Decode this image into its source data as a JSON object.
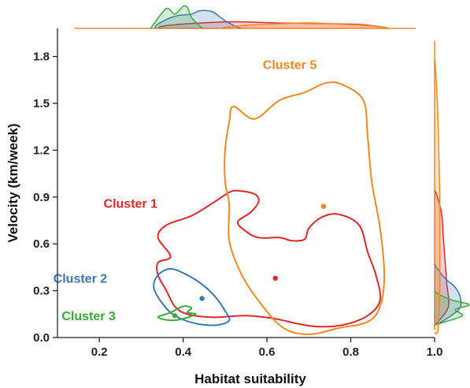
{
  "chart_data": {
    "type": "kde-contour-scatter",
    "xlabel": "Habitat suitability",
    "ylabel": "Velocity (km/week)",
    "xlim": [
      0.1,
      1.0
    ],
    "ylim": [
      0.0,
      1.98
    ],
    "x_ticks": [
      0.2,
      0.4,
      0.6,
      0.8,
      1.0
    ],
    "x_tick_labels": [
      "0.2",
      "0.4",
      "0.6",
      "0.8",
      "1.0"
    ],
    "y_ticks": [
      0.0,
      0.3,
      0.6,
      0.9,
      1.2,
      1.5,
      1.8
    ],
    "y_tick_labels": [
      "0.0",
      "0.3",
      "0.6",
      "0.9",
      "1.2",
      "1.5",
      "1.8"
    ],
    "grid": false,
    "marginal_distributions": true,
    "series": [
      {
        "name": "Cluster 1",
        "color": "#e3262a",
        "centroid": [
          0.62,
          0.38
        ],
        "label_pos": [
          0.21,
          0.83
        ],
        "contour": [
          [
            0.51,
            0.93
          ],
          [
            0.47,
            0.86
          ],
          [
            0.42,
            0.78
          ],
          [
            0.36,
            0.72
          ],
          [
            0.34,
            0.64
          ],
          [
            0.37,
            0.52
          ],
          [
            0.34,
            0.48
          ],
          [
            0.34,
            0.4
          ],
          [
            0.36,
            0.3
          ],
          [
            0.38,
            0.2
          ],
          [
            0.41,
            0.15
          ],
          [
            0.47,
            0.13
          ],
          [
            0.55,
            0.14
          ],
          [
            0.62,
            0.12
          ],
          [
            0.67,
            0.09
          ],
          [
            0.72,
            0.07
          ],
          [
            0.78,
            0.08
          ],
          [
            0.84,
            0.14
          ],
          [
            0.87,
            0.24
          ],
          [
            0.86,
            0.4
          ],
          [
            0.84,
            0.55
          ],
          [
            0.82,
            0.72
          ],
          [
            0.77,
            0.79
          ],
          [
            0.73,
            0.77
          ],
          [
            0.7,
            0.7
          ],
          [
            0.69,
            0.63
          ],
          [
            0.66,
            0.62
          ],
          [
            0.63,
            0.64
          ],
          [
            0.58,
            0.64
          ],
          [
            0.55,
            0.68
          ],
          [
            0.53,
            0.74
          ],
          [
            0.56,
            0.8
          ],
          [
            0.58,
            0.87
          ],
          [
            0.57,
            0.92
          ],
          [
            0.53,
            0.94
          ]
        ]
      },
      {
        "name": "Cluster 2",
        "color": "#3a78b5",
        "centroid": [
          0.445,
          0.25
        ],
        "label_pos": [
          0.09,
          0.35
        ],
        "contour": [
          [
            0.34,
            0.4
          ],
          [
            0.33,
            0.32
          ],
          [
            0.35,
            0.22
          ],
          [
            0.38,
            0.14
          ],
          [
            0.43,
            0.09
          ],
          [
            0.48,
            0.08
          ],
          [
            0.51,
            0.11
          ],
          [
            0.5,
            0.17
          ],
          [
            0.48,
            0.25
          ],
          [
            0.45,
            0.33
          ],
          [
            0.41,
            0.4
          ],
          [
            0.37,
            0.44
          ]
        ]
      },
      {
        "name": "Cluster 3",
        "color": "#3aaa3a",
        "centroid": [
          0.38,
          0.14
        ],
        "label_pos": [
          0.11,
          0.11
        ],
        "contour": [
          [
            0.34,
            0.13
          ],
          [
            0.37,
            0.16
          ],
          [
            0.4,
            0.2
          ],
          [
            0.42,
            0.19
          ],
          [
            0.41,
            0.16
          ],
          [
            0.43,
            0.15
          ],
          [
            0.4,
            0.12
          ],
          [
            0.37,
            0.11
          ]
        ]
      },
      {
        "name": "Cluster 5",
        "color": "#f7871d",
        "centroid": [
          0.735,
          0.84
        ],
        "label_pos": [
          0.59,
          1.72
        ],
        "contour": [
          [
            0.52,
            1.48
          ],
          [
            0.57,
            1.4
          ],
          [
            0.63,
            1.52
          ],
          [
            0.69,
            1.57
          ],
          [
            0.74,
            1.63
          ],
          [
            0.78,
            1.62
          ],
          [
            0.83,
            1.52
          ],
          [
            0.84,
            1.3
          ],
          [
            0.85,
            1.0
          ],
          [
            0.87,
            0.7
          ],
          [
            0.88,
            0.4
          ],
          [
            0.87,
            0.2
          ],
          [
            0.84,
            0.1
          ],
          [
            0.77,
            0.06
          ],
          [
            0.7,
            0.02
          ],
          [
            0.64,
            0.06
          ],
          [
            0.59,
            0.2
          ],
          [
            0.54,
            0.4
          ],
          [
            0.51,
            0.62
          ],
          [
            0.51,
            0.85
          ],
          [
            0.5,
            1.0
          ],
          [
            0.5,
            1.2
          ],
          [
            0.51,
            1.38
          ]
        ]
      }
    ],
    "marginal_x": [
      {
        "name": "Cluster 1",
        "color": "#e3262a",
        "x": [
          0.35,
          0.42,
          0.52,
          0.62,
          0.72,
          0.82,
          0.88
        ],
        "density": [
          0.1,
          0.22,
          0.3,
          0.25,
          0.22,
          0.18,
          0.05
        ]
      },
      {
        "name": "Cluster 2",
        "color": "#3a78b5",
        "x": [
          0.34,
          0.38,
          0.42,
          0.44,
          0.47,
          0.5,
          0.53
        ],
        "density": [
          0.2,
          0.55,
          0.65,
          0.8,
          0.75,
          0.35,
          0.05
        ]
      },
      {
        "name": "Cluster 3",
        "color": "#3aaa3a",
        "x": [
          0.33,
          0.36,
          0.38,
          0.4,
          0.41,
          0.42,
          0.44
        ],
        "density": [
          0.2,
          0.9,
          0.65,
          1.0,
          0.95,
          0.5,
          0.1
        ]
      },
      {
        "name": "Cluster 5",
        "color": "#f7871d",
        "x": [
          0.5,
          0.56,
          0.62,
          0.7,
          0.76,
          0.82,
          0.88
        ],
        "density": [
          0.05,
          0.15,
          0.2,
          0.25,
          0.2,
          0.15,
          0.05
        ]
      }
    ],
    "marginal_y": [
      {
        "name": "Cluster 1",
        "color": "#e3262a",
        "y": [
          0.1,
          0.2,
          0.35,
          0.5,
          0.65,
          0.8,
          0.92
        ],
        "density": [
          0.1,
          0.4,
          0.35,
          0.3,
          0.25,
          0.2,
          0.05
        ]
      },
      {
        "name": "Cluster 2",
        "color": "#3a78b5",
        "y": [
          0.1,
          0.18,
          0.25,
          0.32,
          0.38,
          0.45
        ],
        "density": [
          0.2,
          0.7,
          0.75,
          0.6,
          0.3,
          0.05
        ]
      },
      {
        "name": "Cluster 3",
        "color": "#3aaa3a",
        "y": [
          0.1,
          0.14,
          0.18,
          0.21,
          0.24,
          0.28
        ],
        "density": [
          0.3,
          0.8,
          0.6,
          1.0,
          0.5,
          0.1
        ]
      },
      {
        "name": "Cluster 5",
        "color": "#f7871d",
        "y": [
          0.05,
          0.3,
          0.6,
          0.9,
          1.2,
          1.5,
          1.75
        ],
        "density": [
          0.1,
          0.15,
          0.15,
          0.15,
          0.12,
          0.08,
          0.02
        ]
      }
    ]
  }
}
